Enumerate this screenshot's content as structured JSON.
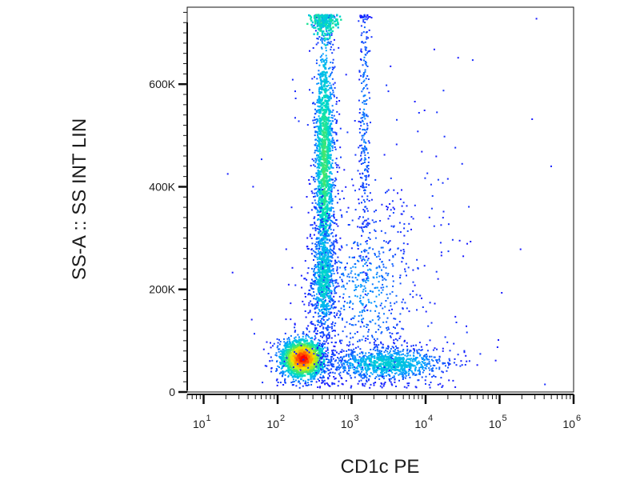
{
  "chart_data": {
    "type": "scatter",
    "subtype": "flow-cytometry-density-dot-plot",
    "title": "",
    "xlabel": "CD1c PE",
    "ylabel": "SS-A :: SS INT LIN",
    "x_scale": "log",
    "xlim": [
      6,
      1000000
    ],
    "x_ticks": [
      {
        "base": "10",
        "exp": "1",
        "value": 10
      },
      {
        "base": "10",
        "exp": "2",
        "value": 100
      },
      {
        "base": "10",
        "exp": "3",
        "value": 1000
      },
      {
        "base": "10",
        "exp": "4",
        "value": 10000
      },
      {
        "base": "10",
        "exp": "5",
        "value": 100000
      },
      {
        "base": "10",
        "exp": "6",
        "value": 1000000
      }
    ],
    "y_scale": "linear",
    "ylim": [
      0,
      750000
    ],
    "y_ticks": [
      {
        "label": "0",
        "value": 0
      },
      {
        "label": "200K",
        "value": 200000
      },
      {
        "label": "400K",
        "value": 400000
      },
      {
        "label": "600K",
        "value": 600000
      }
    ],
    "grid": false,
    "legend": "none",
    "density_colormap": [
      "#1a1aff",
      "#00a9ff",
      "#00e0c0",
      "#5ee84a",
      "#f0f000",
      "#ff8c00",
      "#ff0000"
    ],
    "populations": [
      {
        "x_center": 220,
        "x_spread_decades": 0.17,
        "y_center": 65000,
        "y_spread": 22000,
        "weight": 0.22,
        "peak_density": 1.0
      },
      {
        "x_center": 430,
        "x_spread_decades": 0.07,
        "y_center": 450000,
        "y_spread": 150000,
        "weight": 0.26,
        "peak_density": 0.45
      },
      {
        "x_center": 420,
        "x_spread_decades": 0.09,
        "y_center": 220000,
        "y_spread": 60000,
        "weight": 0.12,
        "peak_density": 0.32
      },
      {
        "x_center": 3000,
        "x_spread_decades": 0.45,
        "y_center": 55000,
        "y_spread": 18000,
        "weight": 0.18,
        "peak_density": 0.28
      },
      {
        "x_center": 1500,
        "x_spread_decades": 0.35,
        "y_center": 200000,
        "y_spread": 90000,
        "weight": 0.1,
        "peak_density": 0.14
      },
      {
        "x_center": 1500,
        "x_spread_decades": 0.04,
        "y_center": 550000,
        "y_spread": 150000,
        "weight": 0.05,
        "peak_density": 0.12
      },
      {
        "x_center": 3000,
        "x_spread_decades": 0.7,
        "y_center": 300000,
        "y_spread": 200000,
        "weight": 0.04,
        "peak_density": 0.04
      }
    ],
    "saturation_y": 735000
  }
}
